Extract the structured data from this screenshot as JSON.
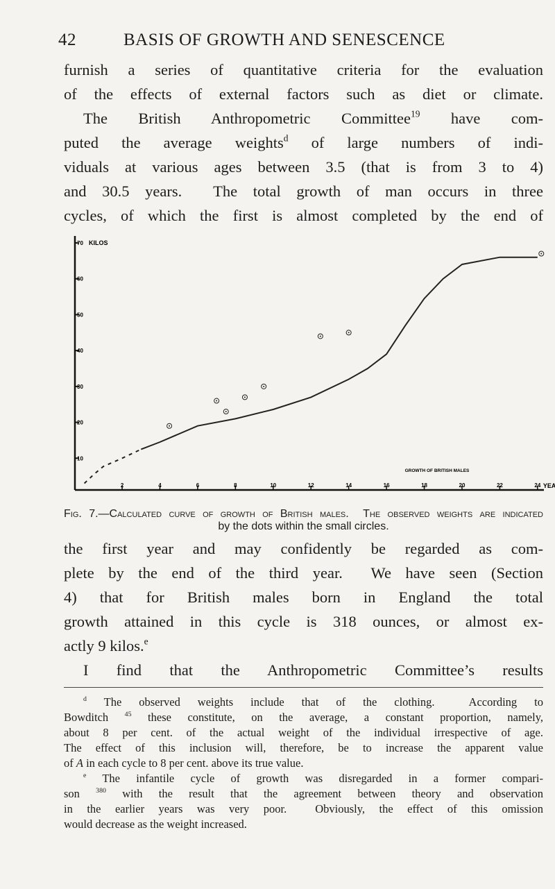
{
  "header": {
    "page_number": "42",
    "title": "BASIS OF GROWTH AND SENESCENCE"
  },
  "body": {
    "lines_before": [
      [
        {
          "text": "furnish a series of quantitative criteria for the evaluation"
        }
      ],
      [
        {
          "text": "of the effects of external factors such as diet or climate."
        }
      ],
      [
        {
          "text": "The British Anthropometric Committee"
        },
        {
          "sup": "19"
        },
        {
          "text": " have com-"
        }
      ],
      [
        {
          "text": "puted the average weights"
        },
        {
          "sup": "d"
        },
        {
          "text": " of large numbers of indi-"
        }
      ],
      [
        {
          "text": "viduals at various ages between 3.5 (that is from 3 to 4)"
        }
      ],
      [
        {
          "text": "and 30.5 years.  The total growth of man occurs in three"
        }
      ],
      [
        {
          "text": "cycles, of which the first is almost completed by the end of"
        }
      ]
    ],
    "lines_after": [
      [
        {
          "text": "the first year and may confidently be regarded as com-"
        }
      ],
      [
        {
          "text": "plete by the end of the third year.  We have seen (Section"
        }
      ],
      [
        {
          "text": "4) that for British males born in England the total"
        }
      ],
      [
        {
          "text": "growth attained in this cycle is 318 ounces, or almost ex-"
        }
      ],
      [
        {
          "text": "actly 9 kilos."
        },
        {
          "sup": "e"
        }
      ],
      [
        {
          "text": "I find that the Anthropometric Committee’s results"
        }
      ]
    ]
  },
  "figure": {
    "caption": [
      [
        {
          "text": "Fig. 7.—Calculated curve of growth of British males.  The observed weights are indicated"
        }
      ],
      [
        {
          "text": "by the dots within the small circles."
        }
      ]
    ],
    "chart_data": {
      "type": "line",
      "y_label": "KILOS",
      "x_label": "YEARS",
      "annotation": "GROWTH OF BRITISH MALES",
      "xlim": [
        -0.5,
        24.3
      ],
      "ylim": [
        0,
        70
      ],
      "xticks": [
        2,
        4,
        6,
        8,
        10,
        12,
        14,
        16,
        18,
        20,
        22,
        24
      ],
      "yticks": [
        10,
        20,
        30,
        40,
        50,
        60,
        70
      ],
      "color": "#222222",
      "series": [
        {
          "style": "dashed",
          "x": [
            0,
            0.5,
            1,
            2,
            3
          ],
          "values": [
            3,
            5.5,
            7.7,
            10,
            12.5
          ]
        },
        {
          "style": "solid",
          "x": [
            3,
            4,
            6,
            8,
            10,
            12,
            14,
            15,
            16,
            17,
            18,
            19,
            20,
            22,
            24
          ],
          "values": [
            12.5,
            14.5,
            19,
            21,
            23.6,
            27,
            32,
            35,
            39,
            47,
            54.5,
            60,
            64,
            66,
            66
          ]
        }
      ],
      "points": {
        "x": [
          4.5,
          7,
          7.5,
          8.5,
          9.5,
          12.5,
          14,
          24.2
        ],
        "values": [
          19,
          26,
          23,
          27,
          30,
          44,
          45,
          67
        ]
      }
    }
  },
  "footnotes": {
    "lines": [
      [
        {
          "sup": "d"
        },
        {
          "text": " The observed weights include that of the clothing.  According to"
        }
      ],
      [
        {
          "text": "Bowditch "
        },
        {
          "sup": "45"
        },
        {
          "text": " these constitute, on the average, a constant proportion, namely,"
        }
      ],
      [
        {
          "text": "about 8 per cent. of the actual weight of the individual irrespective of age."
        }
      ],
      [
        {
          "text": "The effect of this inclusion will, therefore, be to increase the apparent value"
        }
      ],
      [
        {
          "text": "of "
        },
        {
          "italic": "A"
        },
        {
          "text": " in each cycle to 8 per cent. above its true value."
        }
      ],
      [
        {
          "sup": "e"
        },
        {
          "text": " The infantile cycle of growth was disregarded in a former compari-"
        }
      ],
      [
        {
          "text": "son "
        },
        {
          "sup": "380"
        },
        {
          "text": " with the result that the agreement between theory and observation"
        }
      ],
      [
        {
          "text": "in the earlier years was very poor.  Obviously, the effect of this omission"
        }
      ],
      [
        {
          "text": "would decrease as the weight increased."
        }
      ]
    ]
  }
}
